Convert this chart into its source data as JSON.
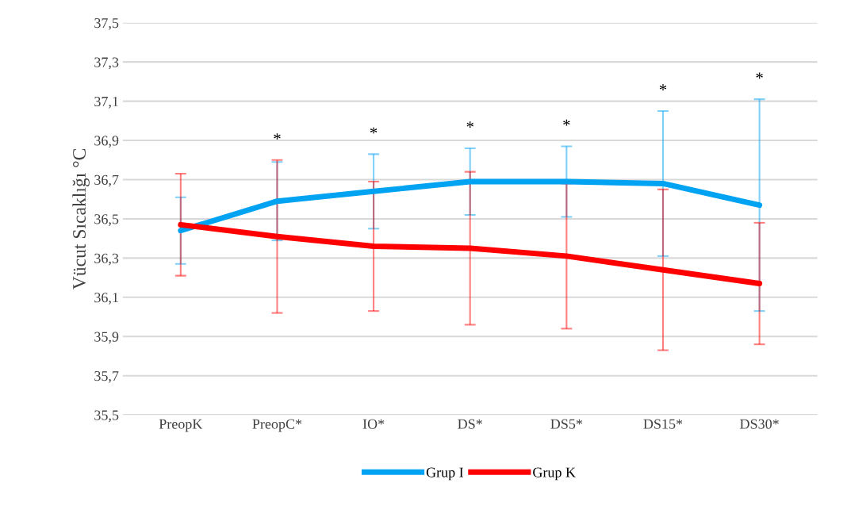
{
  "chart_data": {
    "type": "line",
    "ylabel": "Vücut Sıcaklığı °C",
    "categories": [
      "PreopK",
      "PreopC*",
      "IO*",
      "DS*",
      "DS5*",
      "DS15*",
      "DS30*"
    ],
    "series": [
      {
        "name": "Grup I",
        "color": "#00a2f2",
        "values": [
          36.44,
          36.59,
          36.64,
          36.69,
          36.69,
          36.68,
          36.57
        ],
        "errors": [
          0.17,
          0.2,
          0.19,
          0.17,
          0.18,
          0.37,
          0.54
        ]
      },
      {
        "name": "Grup K",
        "color": "#ff0000",
        "values": [
          36.47,
          36.41,
          36.36,
          36.35,
          36.31,
          36.24,
          36.17
        ],
        "errors": [
          0.26,
          0.39,
          0.33,
          0.39,
          0.37,
          0.41,
          0.31
        ]
      }
    ],
    "ylim": [
      35.5,
      37.5
    ],
    "yticks": [
      {
        "value": 35.5,
        "label": "35,5"
      },
      {
        "value": 35.7,
        "label": "35,7"
      },
      {
        "value": 35.9,
        "label": "35,9"
      },
      {
        "value": 36.1,
        "label": "36,1"
      },
      {
        "value": 36.3,
        "label": "36,3"
      },
      {
        "value": 36.5,
        "label": "36,5"
      },
      {
        "value": 36.7,
        "label": "36,7"
      },
      {
        "value": 36.9,
        "label": "36,9"
      },
      {
        "value": 37.1,
        "label": "37,1"
      },
      {
        "value": 37.3,
        "label": "37,3"
      },
      {
        "value": 37.5,
        "label": "37,5"
      }
    ],
    "annotations": [
      "*",
      "*",
      "*",
      "*",
      "*",
      "*"
    ],
    "grid": "y",
    "legend": "bottom",
    "marker": "none",
    "line_style": "solid"
  }
}
